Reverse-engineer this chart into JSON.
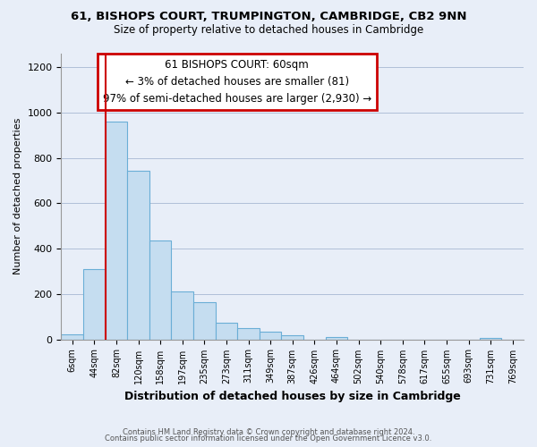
{
  "title1": "61, BISHOPS COURT, TRUMPINGTON, CAMBRIDGE, CB2 9NN",
  "title2": "Size of property relative to detached houses in Cambridge",
  "xlabel": "Distribution of detached houses by size in Cambridge",
  "ylabel": "Number of detached properties",
  "bar_labels": [
    "6sqm",
    "44sqm",
    "82sqm",
    "120sqm",
    "158sqm",
    "197sqm",
    "235sqm",
    "273sqm",
    "311sqm",
    "349sqm",
    "387sqm",
    "426sqm",
    "464sqm",
    "502sqm",
    "540sqm",
    "578sqm",
    "617sqm",
    "655sqm",
    "693sqm",
    "731sqm",
    "769sqm"
  ],
  "bar_values": [
    20,
    310,
    960,
    745,
    435,
    213,
    163,
    73,
    48,
    33,
    18,
    0,
    10,
    0,
    0,
    0,
    0,
    0,
    0,
    8,
    0
  ],
  "bar_color": "#c5ddf0",
  "bar_edge_color": "#6aaed6",
  "background_color": "#e8eef8",
  "plot_bg_color": "#e8eef8",
  "ylim": [
    0,
    1260
  ],
  "yticks": [
    0,
    200,
    400,
    600,
    800,
    1000,
    1200
  ],
  "vline_color": "#cc0000",
  "annotation_title": "61 BISHOPS COURT: 60sqm",
  "annotation_line1": "← 3% of detached houses are smaller (81)",
  "annotation_line2": "97% of semi-detached houses are larger (2,930) →",
  "annotation_box_edge": "#cc0000",
  "footnote1": "Contains HM Land Registry data © Crown copyright and database right 2024.",
  "footnote2": "Contains public sector information licensed under the Open Government Licence v3.0."
}
